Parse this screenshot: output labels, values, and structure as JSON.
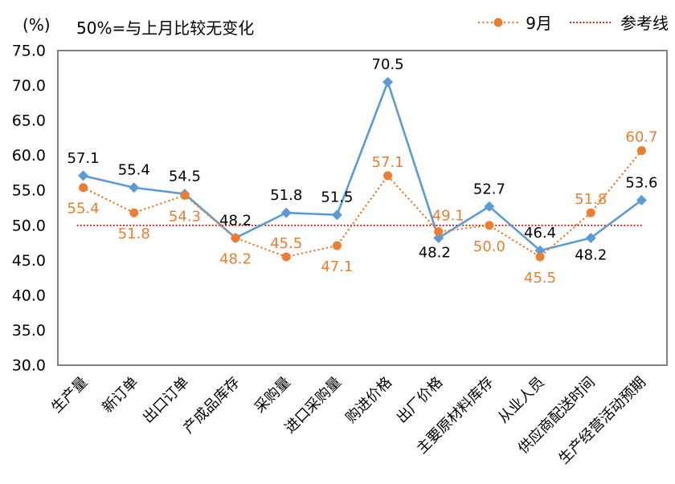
{
  "header": {
    "unit_label": "(%)",
    "subtitle": "50%=与上月比较无变化"
  },
  "legend": {
    "items": [
      {
        "label": "9月",
        "color": "#ED7D31"
      },
      {
        "label": "参考线",
        "color": "#C00000"
      }
    ]
  },
  "chart_data": {
    "type": "line",
    "categories": [
      "生产量",
      "新订单",
      "出口订单",
      "产成品库存",
      "采购量",
      "进口采购量",
      "购进价格",
      "出厂价格",
      "主要原材料库存",
      "从业人员",
      "供应商配送时间",
      "生产经营活动预期"
    ],
    "series": [
      {
        "color": "#5B9BD5",
        "marker": "diamond",
        "line_style": "solid",
        "label_color": "#000000",
        "values": [
          57.1,
          55.4,
          54.5,
          48.2,
          51.8,
          51.5,
          70.5,
          48.2,
          52.7,
          46.4,
          48.2,
          53.6
        ],
        "label_positions": [
          "above",
          "above",
          "above",
          "above",
          "above",
          "above",
          "above",
          "below-left",
          "above",
          "above",
          "below",
          "above"
        ]
      },
      {
        "name": "9月",
        "color": "#ED7D31",
        "marker": "circle",
        "line_style": "dotted",
        "label_color": "#ED7D31",
        "values": [
          55.4,
          51.8,
          54.3,
          48.2,
          45.5,
          47.1,
          57.1,
          49.1,
          50.0,
          45.5,
          51.8,
          60.7
        ],
        "label_positions": [
          "below",
          "below",
          "below",
          "below",
          "above",
          "below",
          "above",
          "above-right",
          "below",
          "below",
          "above",
          "above"
        ]
      }
    ],
    "reference_line": {
      "label": "参考线",
      "value": 50.0,
      "color": "#C00000"
    },
    "ylim": [
      30.0,
      75.0
    ],
    "ytick_step": 5.0,
    "y_axis_unit": "(%)",
    "grid": false,
    "legend_position": "top-right"
  }
}
